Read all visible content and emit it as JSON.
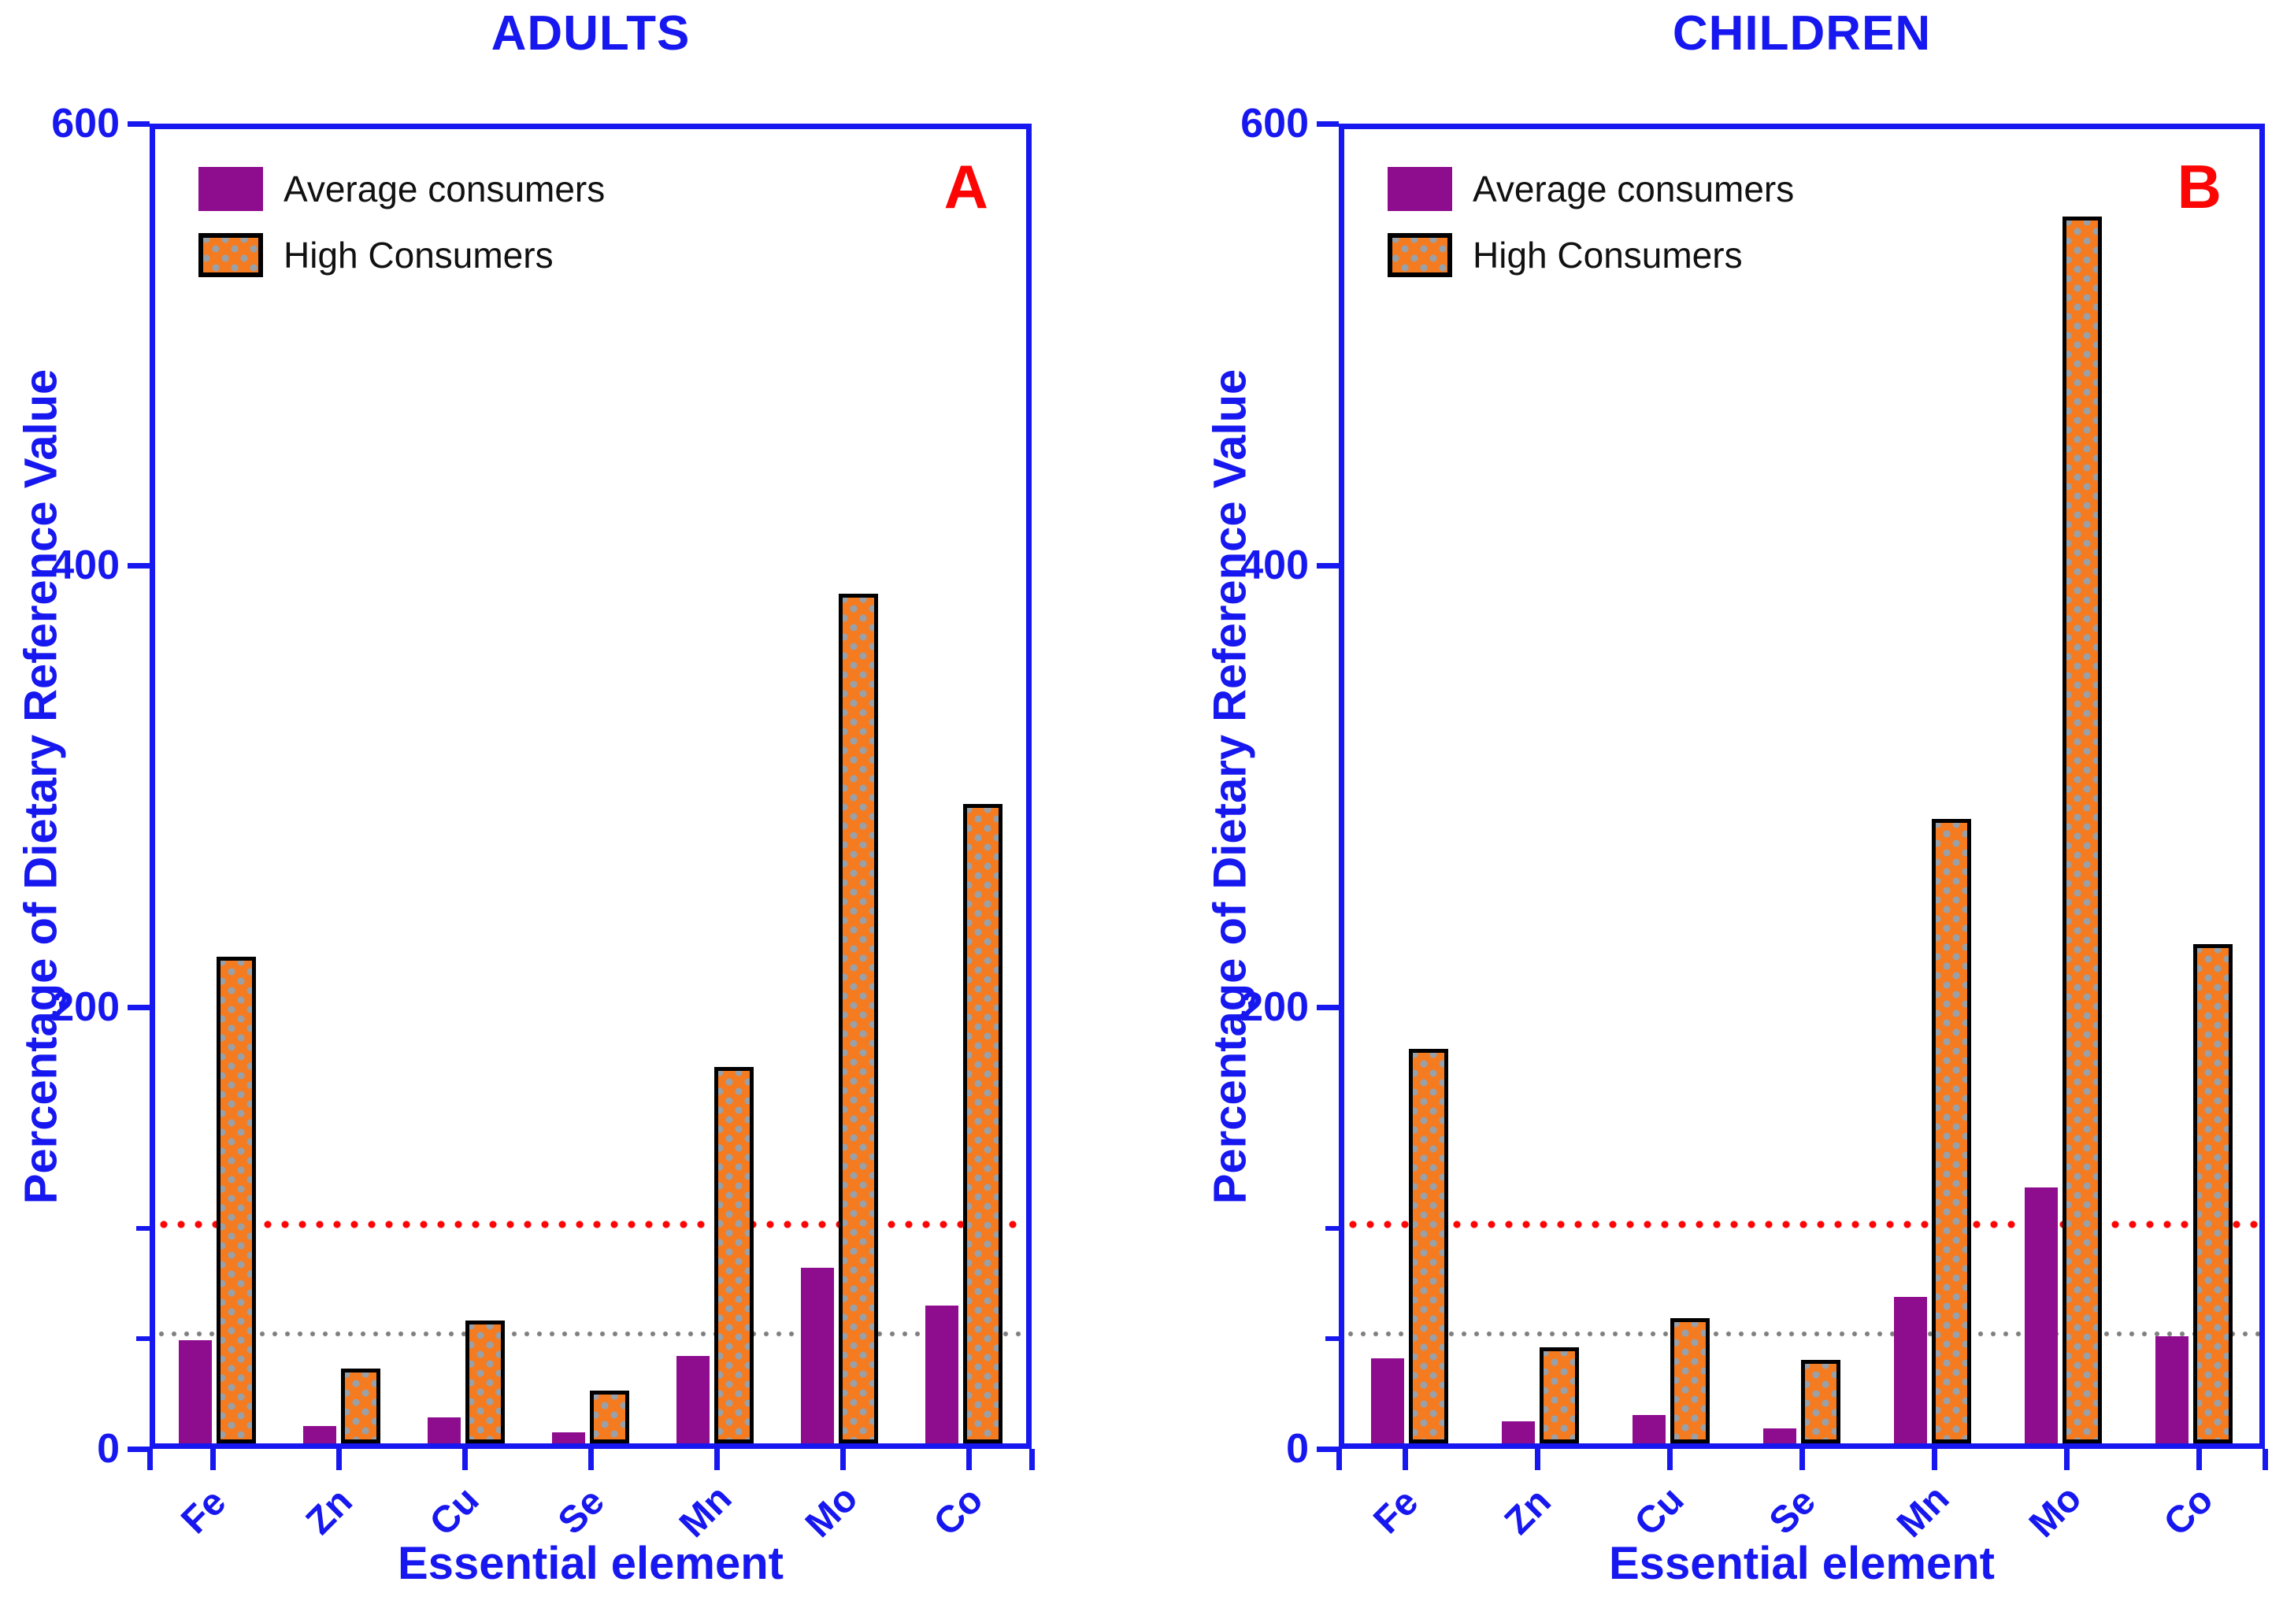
{
  "colors": {
    "axis_blue": "#1717ef",
    "panel_letter_red": "#fb0505",
    "average_purple": "#8e0d8e",
    "high_orange": "#f47b20",
    "pattern_dot_gray": "#9aa0a8",
    "ref_100_red": "#fb0505",
    "ref_50_gray": "#7f7f7f",
    "legend_text": "#111111"
  },
  "chart_data": [
    {
      "type": "bar",
      "panel_label": "A",
      "title": "ADULTS",
      "xlabel": "Essential element",
      "ylabel": "Percentage of Dietary Reference Value",
      "categories": [
        "Fe",
        "Zn",
        "Cu",
        "Se",
        "Mn",
        "Mo",
        "Co"
      ],
      "series": [
        {
          "name": "Average consumers",
          "color": "#8e0d8e",
          "pattern": "solid",
          "values": [
            47,
            8,
            12,
            5,
            40,
            80,
            63
          ]
        },
        {
          "name": "High Consumers",
          "color": "#f47b20",
          "pattern": "gray-dots-black-outline",
          "values": [
            222,
            34,
            56,
            24,
            172,
            388,
            292
          ]
        }
      ],
      "ylim": [
        0,
        600
      ],
      "yticks": [
        0,
        200,
        400,
        600
      ],
      "reference_lines": [
        {
          "y": 100,
          "color": "#fb0505",
          "style": "dotted"
        },
        {
          "y": 50,
          "color": "#7f7f7f",
          "style": "dotted"
        }
      ],
      "legend_position": "top-left",
      "grid": false
    },
    {
      "type": "bar",
      "panel_label": "B",
      "title": "CHILDREN",
      "xlabel": "Essential element",
      "ylabel": "Percentage of Dietary Reference Value",
      "categories": [
        "Fe",
        "Zn",
        "Cu",
        "Se",
        "Mn",
        "Mo",
        "Co"
      ],
      "series": [
        {
          "name": "Average consumers",
          "color": "#8e0d8e",
          "pattern": "solid",
          "values": [
            39,
            10,
            13,
            7,
            67,
            117,
            49
          ]
        },
        {
          "name": "High Consumers",
          "color": "#f47b20",
          "pattern": "gray-dots-black-outline",
          "values": [
            180,
            44,
            57,
            38,
            285,
            560,
            228
          ]
        }
      ],
      "ylim": [
        0,
        600
      ],
      "yticks": [
        0,
        200,
        400,
        600
      ],
      "reference_lines": [
        {
          "y": 100,
          "color": "#fb0505",
          "style": "dotted"
        },
        {
          "y": 50,
          "color": "#7f7f7f",
          "style": "dotted"
        }
      ],
      "legend_position": "top-left",
      "grid": false
    }
  ]
}
